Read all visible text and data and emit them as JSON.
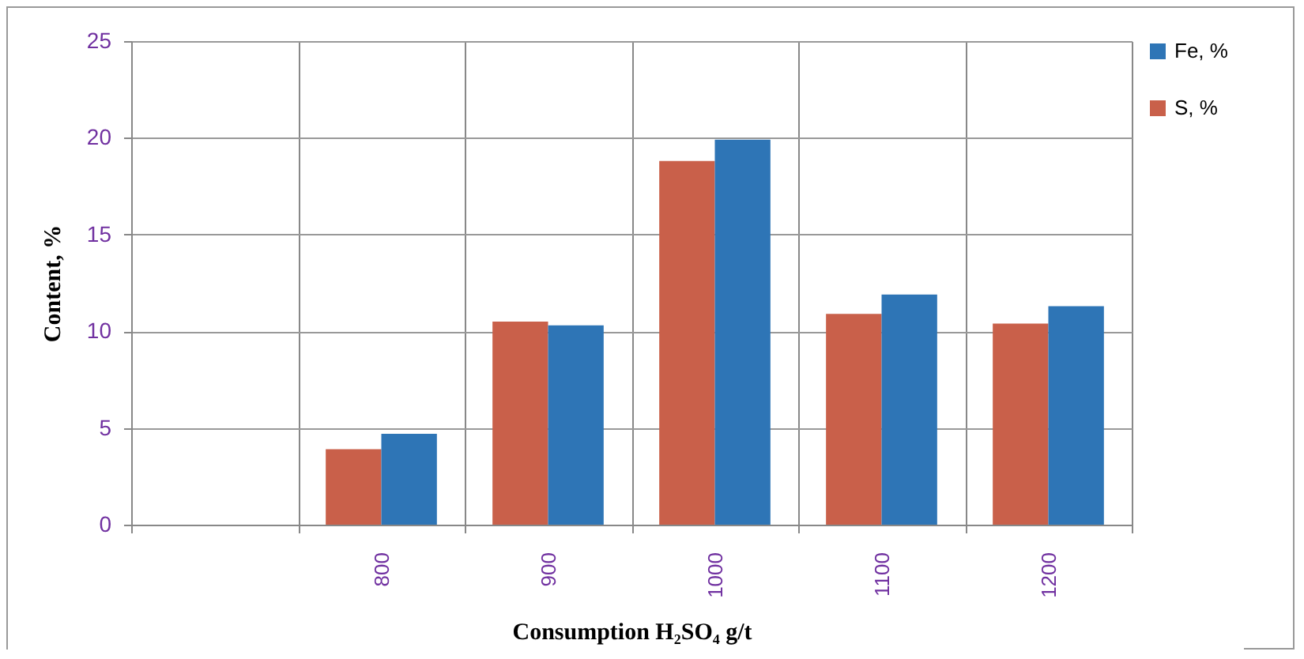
{
  "chart_data": {
    "type": "bar",
    "xlabel": "Consumption H₂SO₄ g/t",
    "ylabel": "Content, %",
    "categories": [
      null,
      "800",
      "900",
      "1000",
      "1100",
      "1200"
    ],
    "series": [
      {
        "name": "S, %",
        "color": "#c9604a",
        "values": [
          null,
          3.9,
          10.5,
          18.8,
          10.9,
          10.4
        ]
      },
      {
        "name": "Fe, %",
        "color": "#2e75b6",
        "values": [
          null,
          4.7,
          10.3,
          19.9,
          11.9,
          11.3
        ]
      }
    ],
    "ylim": [
      0,
      25
    ],
    "yticks": [
      0,
      5,
      10,
      15,
      20,
      25
    ],
    "grid": true,
    "legend": "right"
  }
}
